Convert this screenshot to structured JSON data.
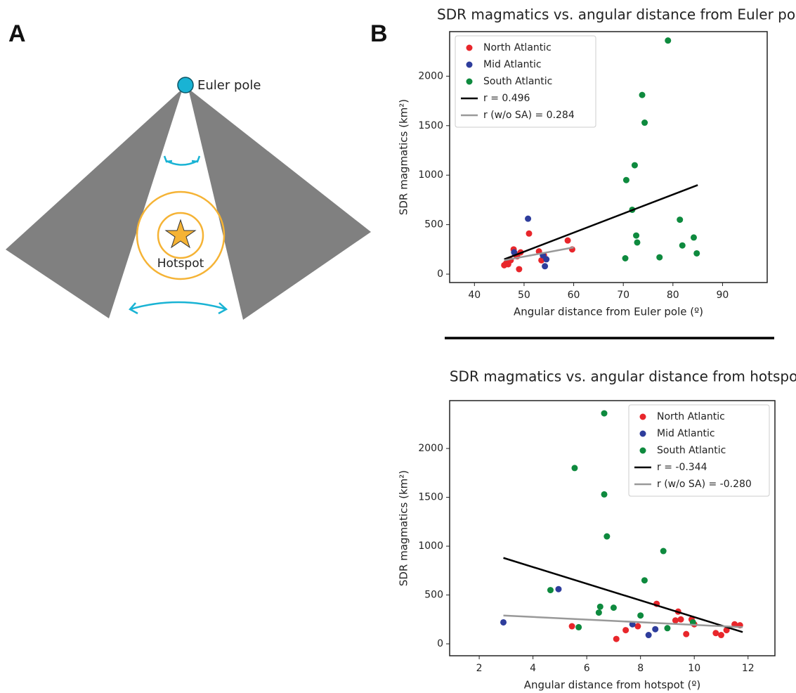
{
  "panel_labels": [
    "A",
    "B"
  ],
  "diagram": {
    "pole_label": "Euler pole",
    "hotspot_label": "Hotspot"
  },
  "chart_data": [
    {
      "type": "scatter",
      "title": "SDR magmatics vs. angular distance from Euler pole",
      "xlabel": "Angular distance from Euler pole (º)",
      "ylabel": "SDR magmatics (km²)",
      "xlim": [
        35,
        99
      ],
      "ylim": [
        -85,
        2450
      ],
      "xticks": [
        40,
        50,
        60,
        70,
        80,
        90
      ],
      "yticks": [
        0,
        500,
        1000,
        1500,
        2000
      ],
      "legend": "upper left",
      "series": [
        {
          "name": "North Atlantic",
          "color": "#e8262b",
          "mode": "markers",
          "x": [
            46,
            46.4,
            46.8,
            47.3,
            47.9,
            48.2,
            48.6,
            49,
            49.3,
            51,
            53,
            53.5,
            54,
            58.8,
            59.7
          ],
          "values": [
            90,
            110,
            100,
            140,
            250,
            200,
            180,
            50,
            220,
            410,
            230,
            140,
            190,
            340,
            250
          ]
        },
        {
          "name": "Mid Atlantic",
          "color": "#2e3d9c",
          "mode": "markers",
          "x": [
            48,
            50.8,
            53.8,
            54.2,
            54.5
          ],
          "values": [
            220,
            560,
            190,
            80,
            150
          ]
        },
        {
          "name": "South Atlantic",
          "color": "#0e8a3e",
          "mode": "markers",
          "x": [
            70.4,
            70.6,
            71.8,
            72.3,
            72.6,
            72.8,
            73.8,
            74.3,
            77.3,
            79,
            81.4,
            81.9,
            84.2,
            84.8
          ],
          "values": [
            160,
            950,
            650,
            1100,
            390,
            320,
            1810,
            1530,
            170,
            2360,
            550,
            290,
            370,
            210
          ]
        },
        {
          "name": "r = 0.496",
          "color": "#000000",
          "mode": "line",
          "x": [
            46,
            85
          ],
          "values": [
            150,
            900
          ]
        },
        {
          "name": "r (w/o SA) = 0.284",
          "color": "#999999",
          "mode": "line",
          "x": [
            46,
            60
          ],
          "values": [
            140,
            270
          ]
        }
      ]
    },
    {
      "type": "scatter",
      "title": "SDR magmatics vs. angular distance from hotspot",
      "xlabel": "Angular distance from hotspot (º)",
      "ylabel": "SDR magmatics (km²)",
      "xlim": [
        0.9,
        13
      ],
      "ylim": [
        -122,
        2490
      ],
      "xticks": [
        2,
        4,
        6,
        8,
        10,
        12
      ],
      "yticks": [
        0,
        500,
        1000,
        1500,
        2000
      ],
      "legend": "upper right",
      "series": [
        {
          "name": "North Atlantic",
          "color": "#e8262b",
          "mode": "markers",
          "x": [
            5.45,
            7.1,
            7.45,
            7.9,
            8.6,
            9.3,
            9.4,
            9.5,
            9.7,
            9.9,
            10.0,
            10.8,
            11.0,
            11.2,
            11.5,
            11.7
          ],
          "values": [
            180,
            50,
            140,
            180,
            410,
            240,
            330,
            250,
            100,
            250,
            200,
            110,
            90,
            140,
            200,
            190
          ]
        },
        {
          "name": "Mid Atlantic",
          "color": "#2e3d9c",
          "mode": "markers",
          "x": [
            2.9,
            4.95,
            7.7,
            8.3,
            8.55
          ],
          "values": [
            220,
            560,
            200,
            90,
            150
          ]
        },
        {
          "name": "South Atlantic",
          "color": "#0e8a3e",
          "mode": "markers",
          "x": [
            4.65,
            5.7,
            6.45,
            6.5,
            6.65,
            6.65,
            5.55,
            6.75,
            7.0,
            8.0,
            8.15,
            8.85,
            9.0,
            9.95
          ],
          "values": [
            550,
            170,
            320,
            380,
            2360,
            1530,
            1800,
            1100,
            370,
            290,
            650,
            950,
            160,
            220
          ]
        },
        {
          "name": "r = -0.344",
          "color": "#000000",
          "mode": "line",
          "x": [
            2.9,
            11.8
          ],
          "values": [
            880,
            120
          ]
        },
        {
          "name": "r (w/o SA) = -0.280",
          "color": "#999999",
          "mode": "line",
          "x": [
            2.9,
            11.8
          ],
          "values": [
            290,
            170
          ]
        }
      ]
    }
  ]
}
